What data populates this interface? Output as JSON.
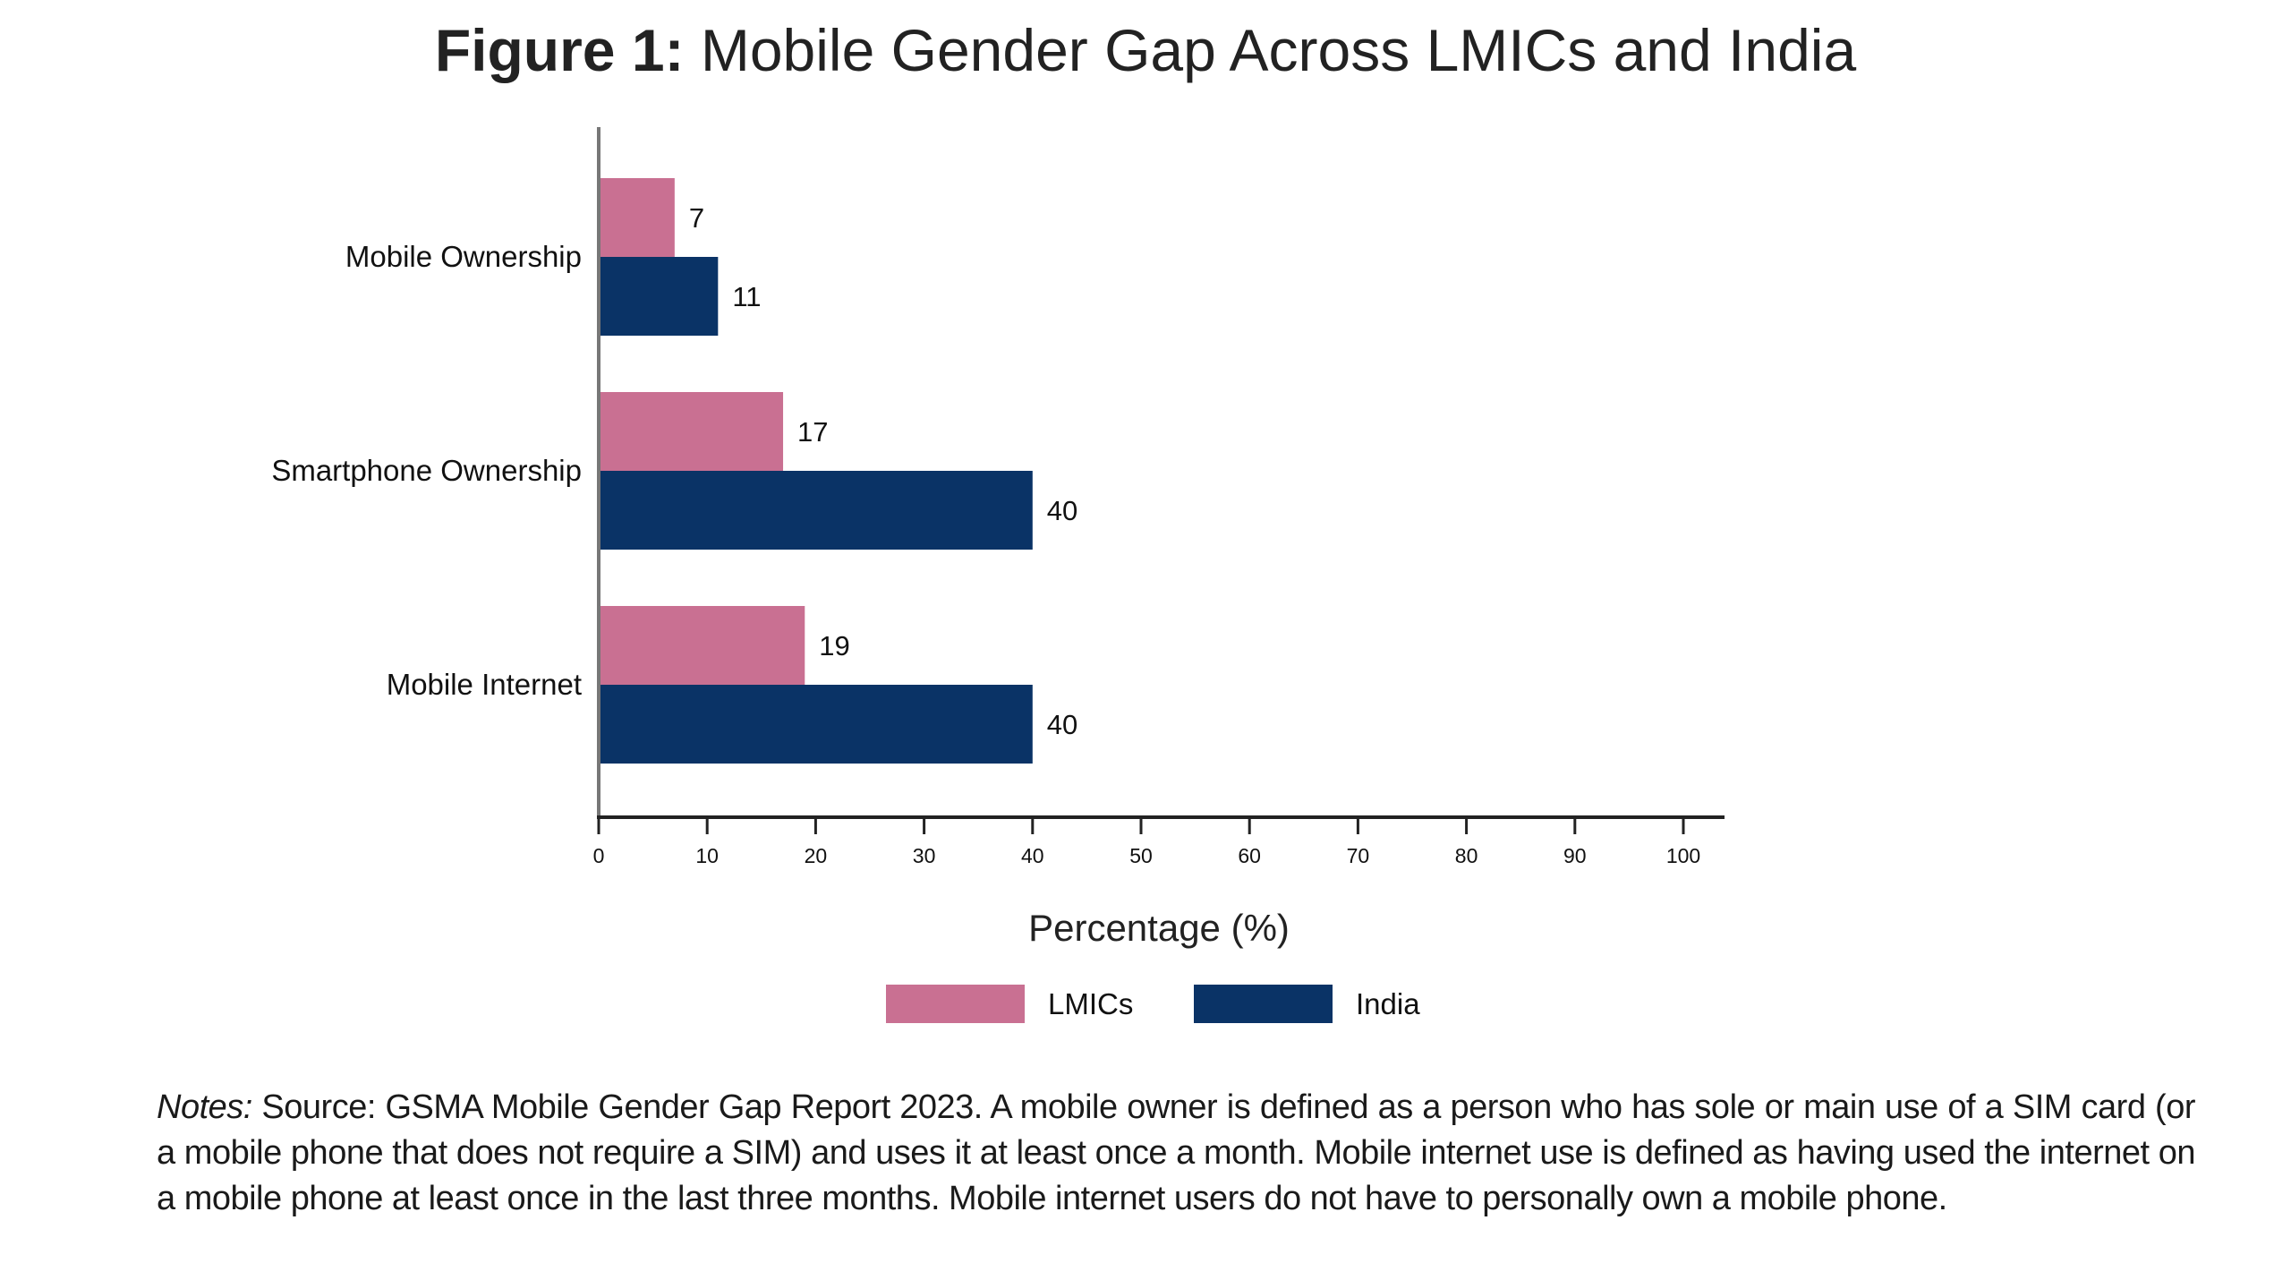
{
  "title": {
    "prefix": "Figure 1:",
    "text": "Mobile Gender Gap Across LMICs and India"
  },
  "chart_data": {
    "type": "bar",
    "orientation": "horizontal",
    "categories": [
      "Mobile Ownership",
      "Smartphone Ownership",
      "Mobile Internet"
    ],
    "series": [
      {
        "name": "LMICs",
        "color": "#c97092",
        "values": [
          7,
          17,
          19
        ]
      },
      {
        "name": "India",
        "color": "#0a3366",
        "values": [
          11,
          40,
          40
        ]
      }
    ],
    "xlabel": "Percentage (%)",
    "ylabel": "",
    "xlim": [
      0,
      100
    ],
    "xticks": [
      0,
      10,
      20,
      30,
      40,
      50,
      60,
      70,
      80,
      90,
      100
    ],
    "grid": false,
    "legend_position": "bottom-center"
  },
  "notes": {
    "label": "Notes:",
    "text": "Source: GSMA Mobile Gender Gap Report 2023. A mobile owner is defined as a person who has sole or main use of a SIM card (or a mobile phone that does not require a SIM) and uses it at least once a month. Mobile internet use is defined as having used the internet on a mobile phone at least once in the last three months. Mobile internet users do not have to personally own a mobile phone."
  }
}
